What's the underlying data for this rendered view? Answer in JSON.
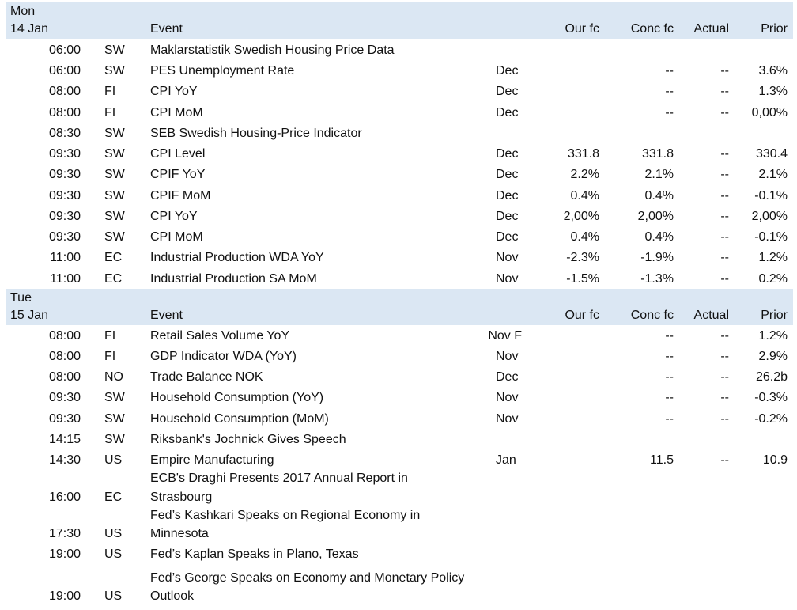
{
  "days": [
    {
      "day": "Mon",
      "date": "14 Jan",
      "headers": {
        "event": "Event",
        "our_fc": "Our fc",
        "conc_fc": "Conc fc",
        "actual": "Actual",
        "prior": "Prior"
      },
      "rows": [
        {
          "time": "06:00",
          "country": "SW",
          "event": "Maklarstatistik Swedish Housing Price Data",
          "period": "",
          "our_fc": "",
          "conc_fc": "",
          "actual": "",
          "prior": ""
        },
        {
          "time": "06:00",
          "country": "SW",
          "event": "PES Unemployment Rate",
          "period": "Dec",
          "our_fc": "",
          "conc_fc": "--",
          "actual": "--",
          "prior": "3.6%"
        },
        {
          "time": "08:00",
          "country": "FI",
          "event": "CPI YoY",
          "period": "Dec",
          "our_fc": "",
          "conc_fc": "--",
          "actual": "--",
          "prior": "1.3%"
        },
        {
          "time": "08:00",
          "country": "FI",
          "event": "CPI MoM",
          "period": "Dec",
          "our_fc": "",
          "conc_fc": "--",
          "actual": "--",
          "prior": "0,00%"
        },
        {
          "time": "08:30",
          "country": "SW",
          "event": "SEB Swedish Housing-Price Indicator",
          "period": "",
          "our_fc": "",
          "conc_fc": "",
          "actual": "",
          "prior": ""
        },
        {
          "time": "09:30",
          "country": "SW",
          "event": "CPI Level",
          "period": "Dec",
          "our_fc": "331.8",
          "conc_fc": "331.8",
          "actual": "--",
          "prior": "330.4"
        },
        {
          "time": "09:30",
          "country": "SW",
          "event": "CPIF YoY",
          "period": "Dec",
          "our_fc": "2.2%",
          "conc_fc": "2.1%",
          "actual": "--",
          "prior": "2.1%"
        },
        {
          "time": "09:30",
          "country": "SW",
          "event": "CPIF MoM",
          "period": "Dec",
          "our_fc": "0.4%",
          "conc_fc": "0.4%",
          "actual": "--",
          "prior": "-0.1%"
        },
        {
          "time": "09:30",
          "country": "SW",
          "event": "CPI YoY",
          "period": "Dec",
          "our_fc": "2,00%",
          "conc_fc": "2,00%",
          "actual": "--",
          "prior": "2,00%"
        },
        {
          "time": "09:30",
          "country": "SW",
          "event": "CPI MoM",
          "period": "Dec",
          "our_fc": "0.4%",
          "conc_fc": "0.4%",
          "actual": "--",
          "prior": "-0.1%"
        },
        {
          "time": "11:00",
          "country": "EC",
          "event": "Industrial Production WDA YoY",
          "period": "Nov",
          "our_fc": "-2.3%",
          "conc_fc": "-1.9%",
          "actual": "--",
          "prior": "1.2%"
        },
        {
          "time": "11:00",
          "country": "EC",
          "event": "Industrial Production SA MoM",
          "period": "Nov",
          "our_fc": "-1.5%",
          "conc_fc": "-1.3%",
          "actual": "--",
          "prior": "0.2%"
        }
      ]
    },
    {
      "day": "Tue",
      "date": "15 Jan",
      "headers": {
        "event": "Event",
        "our_fc": "Our fc",
        "conc_fc": "Conc fc",
        "actual": "Actual",
        "prior": "Prior"
      },
      "rows": [
        {
          "time": "08:00",
          "country": "FI",
          "event": "Retail Sales Volume YoY",
          "period": "Nov F",
          "our_fc": "",
          "conc_fc": "--",
          "actual": "--",
          "prior": "1.2%"
        },
        {
          "time": "08:00",
          "country": "FI",
          "event": "GDP Indicator WDA (YoY)",
          "period": "Nov",
          "our_fc": "",
          "conc_fc": "--",
          "actual": "--",
          "prior": "2.9%"
        },
        {
          "time": "08:00",
          "country": "NO",
          "event": "Trade Balance NOK",
          "period": "Dec",
          "our_fc": "",
          "conc_fc": "--",
          "actual": "--",
          "prior": "26.2b"
        },
        {
          "time": "09:30",
          "country": "SW",
          "event": "Household Consumption (YoY)",
          "period": "Nov",
          "our_fc": "",
          "conc_fc": "--",
          "actual": "--",
          "prior": "-0.3%"
        },
        {
          "time": "09:30",
          "country": "SW",
          "event": "Household Consumption (MoM)",
          "period": "Nov",
          "our_fc": "",
          "conc_fc": "--",
          "actual": "--",
          "prior": "-0.2%"
        },
        {
          "time": "14:15",
          "country": "SW",
          "event": "Riksbank's Jochnick Gives Speech",
          "period": "",
          "our_fc": "",
          "conc_fc": "",
          "actual": "",
          "prior": ""
        },
        {
          "time": "14:30",
          "country": "US",
          "event": "Empire Manufacturing",
          "period": "Jan",
          "our_fc": "",
          "conc_fc": "11.5",
          "actual": "--",
          "prior": "10.9"
        },
        {
          "time": "16:00",
          "country": "EC",
          "event": "ECB's Draghi Presents 2017 Annual Report in",
          "event_line2": "Strasbourg",
          "period": "",
          "our_fc": "",
          "conc_fc": "",
          "actual": "",
          "prior": ""
        },
        {
          "time": "17:30",
          "country": "US",
          "event": "Fed’s Kashkari Speaks on Regional Economy in",
          "event_line2": "Minnesota",
          "period": "",
          "our_fc": "",
          "conc_fc": "",
          "actual": "",
          "prior": ""
        },
        {
          "time": "19:00",
          "country": "US",
          "event": "Fed’s Kaplan Speaks in Plano, Texas",
          "period": "",
          "our_fc": "",
          "conc_fc": "",
          "actual": "",
          "prior": ""
        },
        {
          "time": "19:00",
          "country": "US",
          "event": "Fed’s George Speaks on Economy and Monetary Policy",
          "event_line2": "Outlook",
          "period": "",
          "our_fc": "",
          "conc_fc": "",
          "actual": "",
          "prior": ""
        }
      ]
    }
  ]
}
